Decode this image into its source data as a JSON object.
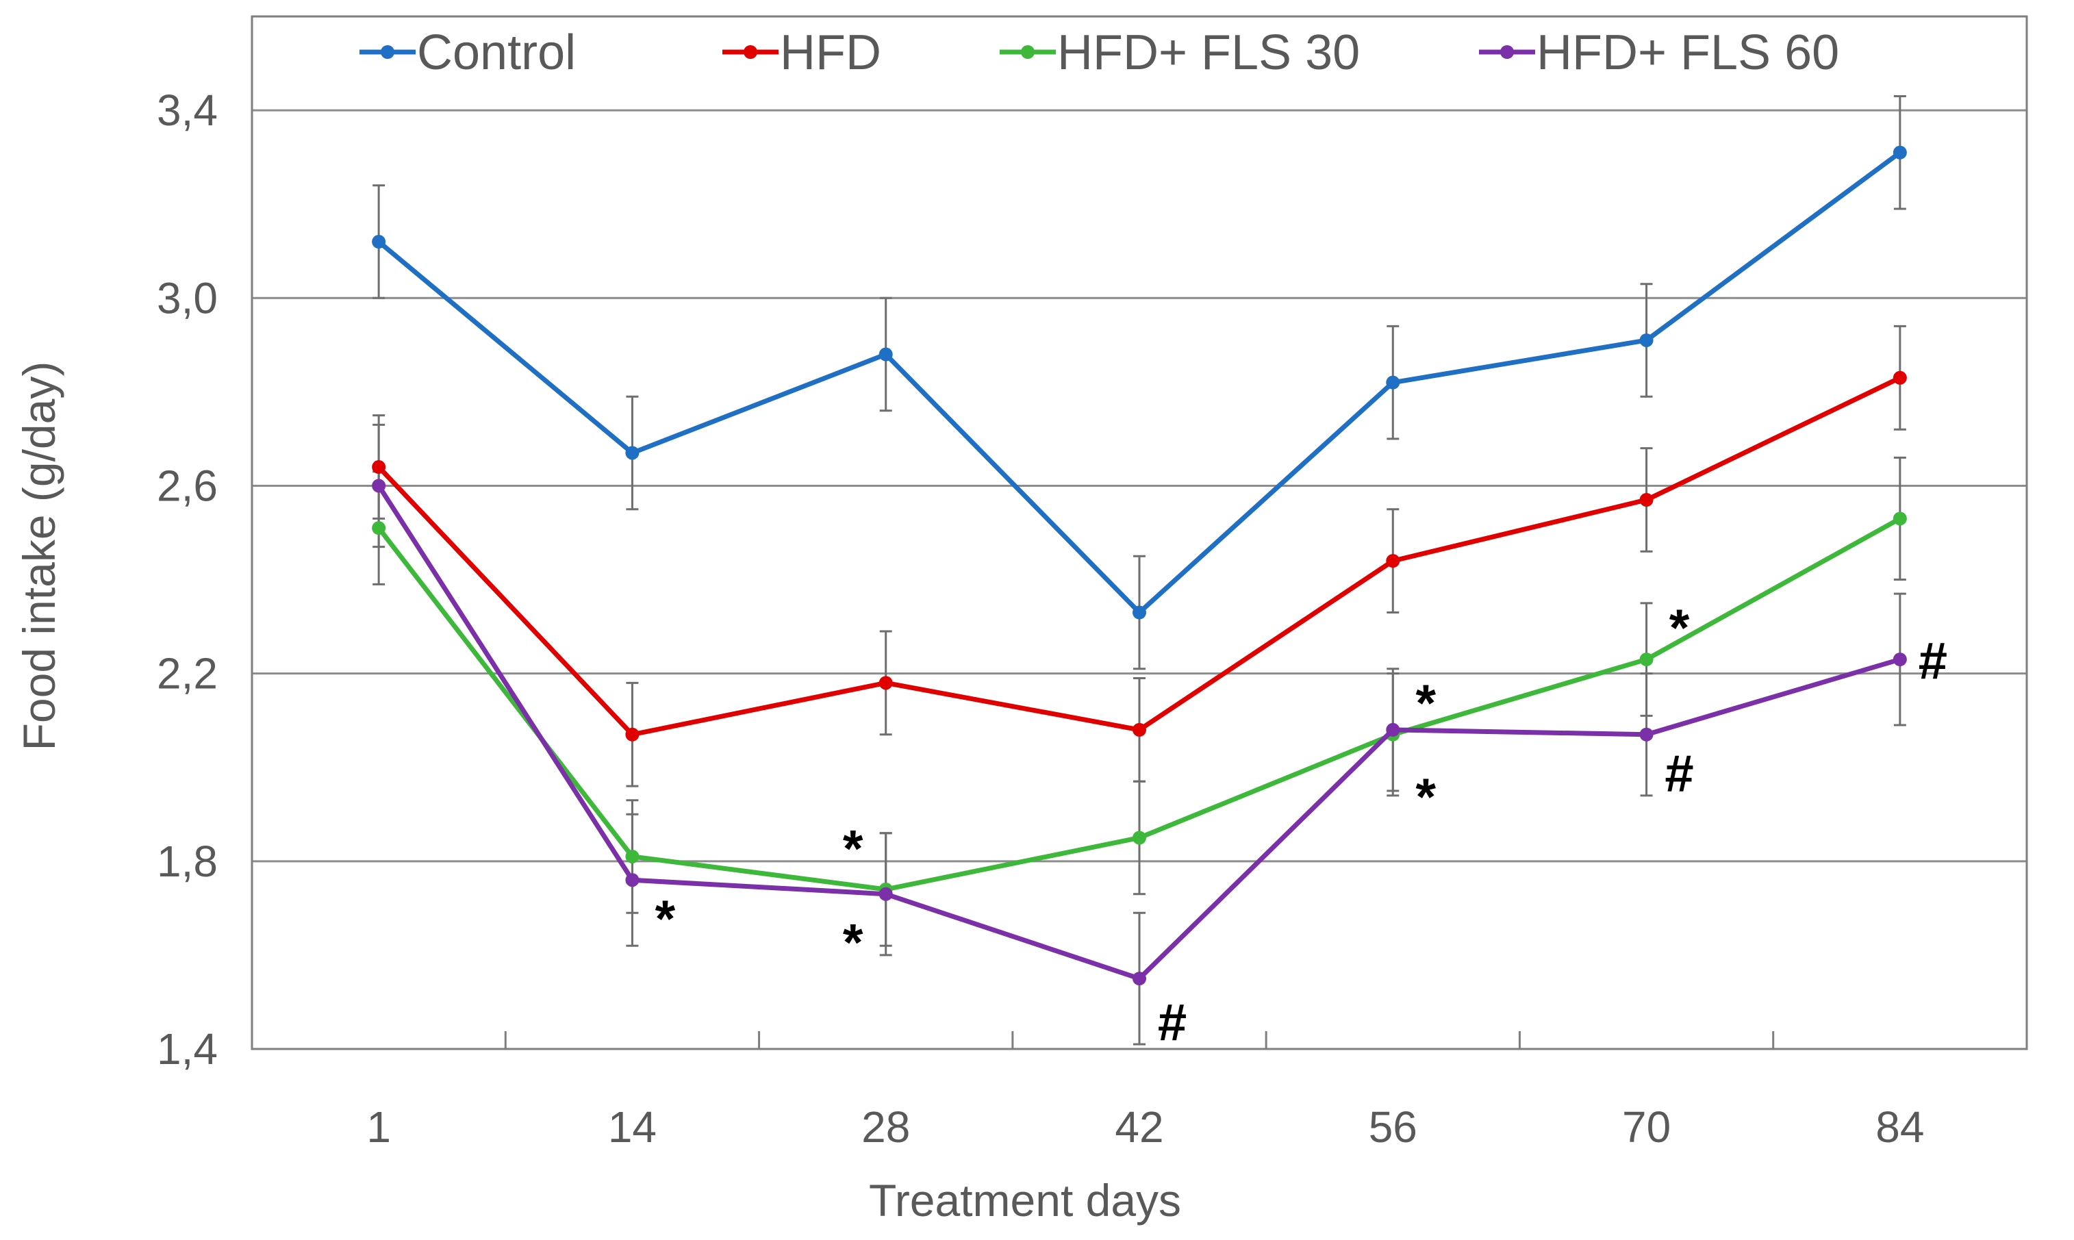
{
  "chart_data": {
    "type": "line",
    "title": "",
    "xlabel": "Treatment days",
    "ylabel": "Food intake (g/day)",
    "categories": [
      "1",
      "14",
      "28",
      "42",
      "56",
      "70",
      "84"
    ],
    "ylim": [
      1.4,
      3.6
    ],
    "yticks": [
      1.4,
      1.8,
      2.2,
      2.6,
      3.0,
      3.4
    ],
    "ytick_labels": [
      "1,4",
      "1,8",
      "2,2",
      "2,6",
      "3,0",
      "3,4"
    ],
    "grid": "horizontal",
    "legend": "top",
    "series": [
      {
        "name": "Control",
        "color": "#1f6fc5",
        "values": [
          3.12,
          2.67,
          2.88,
          2.33,
          2.82,
          2.91,
          3.31
        ],
        "errors": [
          0.12,
          0.12,
          0.12,
          0.12,
          0.12,
          0.12,
          0.12
        ]
      },
      {
        "name": "HFD",
        "color": "#e00000",
        "values": [
          2.64,
          2.07,
          2.18,
          2.08,
          2.44,
          2.57,
          2.83
        ],
        "errors": [
          0.11,
          0.11,
          0.11,
          0.11,
          0.11,
          0.11,
          0.11
        ]
      },
      {
        "name": "HFD+ FLS 30",
        "color": "#3eb83a",
        "values": [
          2.51,
          1.81,
          1.74,
          1.85,
          2.07,
          2.23,
          2.53
        ],
        "errors": [
          0.12,
          0.12,
          0.12,
          0.12,
          0.13,
          0.12,
          0.13
        ]
      },
      {
        "name": "HFD+ FLS 60",
        "color": "#7b2fa8",
        "values": [
          2.6,
          1.76,
          1.73,
          1.55,
          2.08,
          2.07,
          2.23
        ],
        "errors": [
          0.13,
          0.14,
          0.13,
          0.14,
          0.13,
          0.13,
          0.14
        ]
      }
    ],
    "annotations": [
      {
        "text": "*",
        "category": "14",
        "value": 1.68,
        "side": "right"
      },
      {
        "text": "*",
        "category": "28",
        "value": 1.83,
        "side": "left"
      },
      {
        "text": "*",
        "category": "28",
        "value": 1.63,
        "side": "left"
      },
      {
        "text": "#",
        "category": "42",
        "value": 1.46,
        "side": "right"
      },
      {
        "text": "*",
        "category": "56",
        "value": 2.14,
        "side": "right"
      },
      {
        "text": "*",
        "category": "56",
        "value": 1.94,
        "side": "right"
      },
      {
        "text": "*",
        "category": "70",
        "value": 2.3,
        "side": "right"
      },
      {
        "text": "#",
        "category": "70",
        "value": 1.99,
        "side": "right"
      },
      {
        "text": "#",
        "category": "84",
        "value": 2.23,
        "side": "right"
      }
    ]
  }
}
